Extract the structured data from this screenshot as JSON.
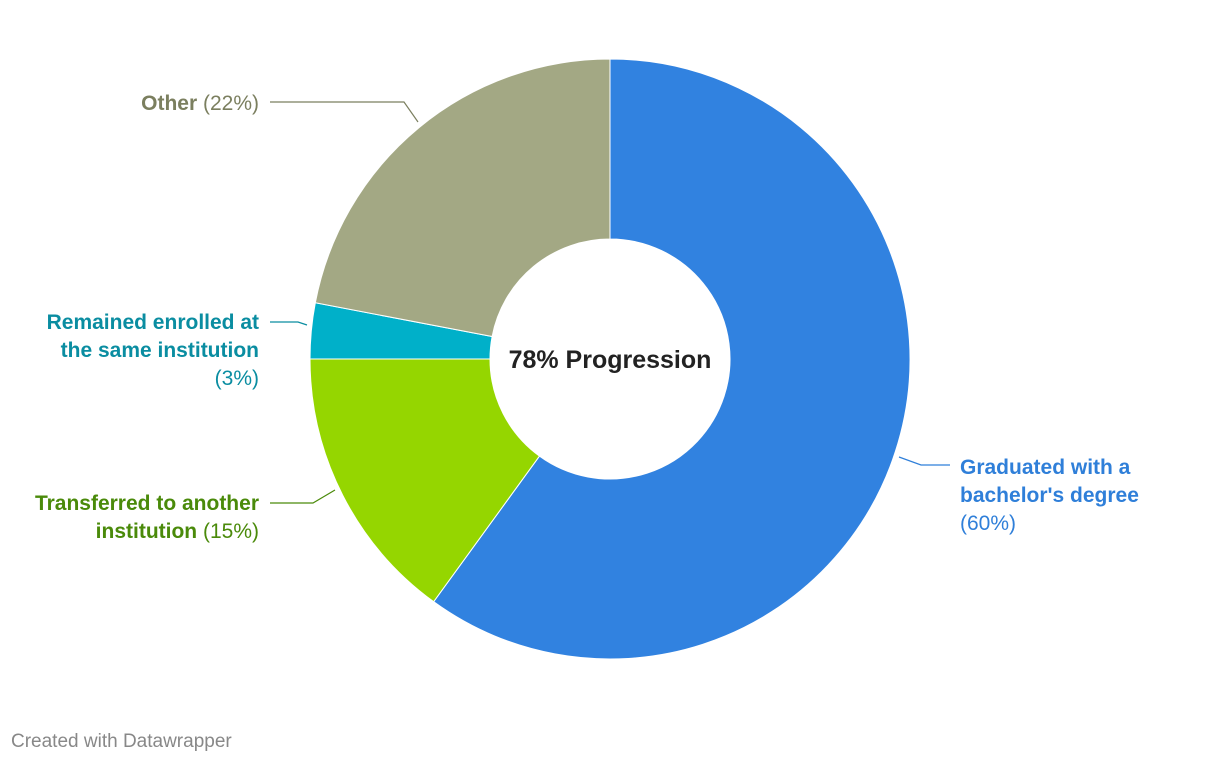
{
  "chart_data": {
    "type": "pie",
    "donut": true,
    "center_label": "78% Progression",
    "slices": [
      {
        "key": "graduated",
        "label_lines": [
          "Graduated with a",
          "bachelor's degree"
        ],
        "value": 60,
        "value_text": "(60%)",
        "color": "#3182e0",
        "text_color": "#2f7fd9"
      },
      {
        "key": "transferred",
        "label_lines": [
          "Transferred to another",
          "institution"
        ],
        "value": 15,
        "value_text": "(15%)",
        "color": "#95d600",
        "text_color": "#4a8a0a"
      },
      {
        "key": "remained",
        "label_lines": [
          "Remained enrolled at",
          "the same institution"
        ],
        "value": 3,
        "value_text": "(3%)",
        "color": "#00b0c9",
        "text_color": "#0a8da1"
      },
      {
        "key": "other",
        "label_lines": [
          "Other"
        ],
        "value": 22,
        "value_text": "(22%)",
        "color": "#a3a884",
        "text_color": "#7b7f5f"
      }
    ]
  },
  "footer": {
    "credit": "Created with Datawrapper"
  }
}
